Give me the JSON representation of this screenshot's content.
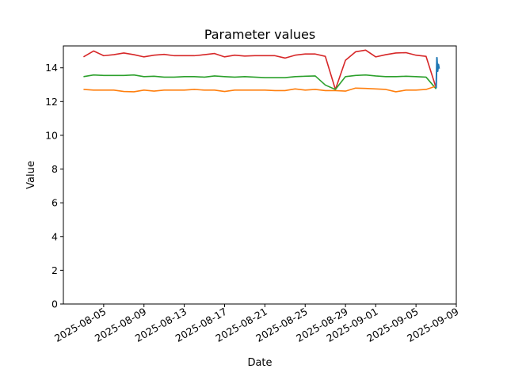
{
  "chart_data": {
    "type": "line",
    "title": "Parameter values",
    "xlabel": "Date",
    "ylabel": "Value",
    "ylim": [
      0,
      15.3
    ],
    "xlim": [
      "2025-08-01",
      "2025-09-09"
    ],
    "grid": false,
    "x_ticks": [
      "2025-08-05",
      "2025-08-09",
      "2025-08-13",
      "2025-08-17",
      "2025-08-21",
      "2025-08-25",
      "2025-08-29",
      "2025-09-01",
      "2025-09-05",
      "2025-09-09"
    ],
    "y_ticks": [
      0,
      2,
      4,
      6,
      8,
      10,
      12,
      14
    ],
    "x": [
      "2025-08-03",
      "2025-08-04",
      "2025-08-05",
      "2025-08-06",
      "2025-08-07",
      "2025-08-08",
      "2025-08-09",
      "2025-08-10",
      "2025-08-11",
      "2025-08-12",
      "2025-08-13",
      "2025-08-14",
      "2025-08-15",
      "2025-08-16",
      "2025-08-17",
      "2025-08-18",
      "2025-08-19",
      "2025-08-20",
      "2025-08-21",
      "2025-08-22",
      "2025-08-23",
      "2025-08-24",
      "2025-08-25",
      "2025-08-26",
      "2025-08-27",
      "2025-08-28",
      "2025-08-29",
      "2025-08-30",
      "2025-08-31",
      "2025-09-01",
      "2025-09-02",
      "2025-09-03",
      "2025-09-04",
      "2025-09-05",
      "2025-09-06",
      "2025-09-07"
    ],
    "series": [
      {
        "color": "#d62728",
        "values": [
          14.65,
          15.0,
          14.72,
          14.78,
          14.88,
          14.78,
          14.65,
          14.75,
          14.8,
          14.72,
          14.72,
          14.72,
          14.78,
          14.85,
          14.65,
          14.75,
          14.7,
          14.72,
          14.72,
          14.72,
          14.58,
          14.75,
          14.82,
          14.82,
          14.68,
          12.72,
          14.45,
          14.95,
          15.05,
          14.65,
          14.78,
          14.88,
          14.9,
          14.75,
          14.68,
          12.8
        ]
      },
      {
        "color": "#2ca02c",
        "values": [
          13.48,
          13.58,
          13.55,
          13.55,
          13.55,
          13.58,
          13.48,
          13.5,
          13.45,
          13.45,
          13.48,
          13.48,
          13.45,
          13.52,
          13.48,
          13.45,
          13.48,
          13.45,
          13.42,
          13.42,
          13.42,
          13.48,
          13.5,
          13.52,
          12.98,
          12.72,
          13.48,
          13.55,
          13.58,
          13.52,
          13.48,
          13.48,
          13.5,
          13.48,
          13.45,
          12.75
        ]
      },
      {
        "color": "#ff7f0e",
        "values": [
          12.72,
          12.68,
          12.68,
          12.68,
          12.6,
          12.58,
          12.68,
          12.62,
          12.68,
          12.68,
          12.68,
          12.72,
          12.68,
          12.68,
          12.6,
          12.68,
          12.68,
          12.68,
          12.68,
          12.65,
          12.65,
          12.75,
          12.68,
          12.72,
          12.65,
          12.65,
          12.62,
          12.8,
          12.78,
          12.75,
          12.72,
          12.58,
          12.68,
          12.68,
          12.72,
          12.92
        ]
      },
      {
        "color": "#1f77b4",
        "x": [
          "2025-09-07",
          "2025-09-07",
          "2025-09-07",
          "2025-09-07",
          "2025-09-07"
        ],
        "values": [
          12.8,
          14.6,
          13.8,
          14.2,
          13.95
        ]
      }
    ]
  }
}
